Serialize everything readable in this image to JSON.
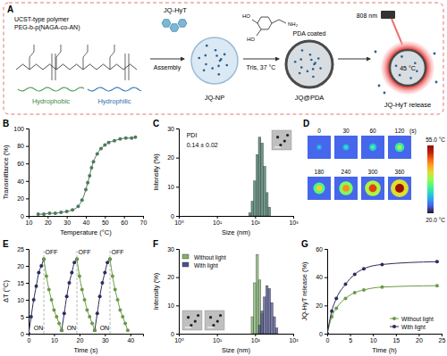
{
  "schematic": {
    "panel": "A",
    "polymer_title": "UCST-type polymer",
    "polymer_name": "PEG-b-p(NAGA-co-AN)",
    "hydrophobic": "Hydrophobic",
    "hydrophilic": "Hydrophilic",
    "drug": "JQ-HyT",
    "step1": "Assembly",
    "nanoparticle": "JQ-NP",
    "dopamine_labels": [
      "HO",
      "HO",
      "NH₂"
    ],
    "step2": "Tris, 37 °C",
    "coating": "PDA coated",
    "coated_particle": "JQ@PDA",
    "laser": "808 nm",
    "temperature": "45 °C",
    "release": "JQ-HyT release"
  },
  "thermal": {
    "panel": "D",
    "times": [
      0,
      30,
      60,
      120,
      180,
      240,
      300,
      360
    ],
    "time_unit": "(s)",
    "colorbar_max": "55.0 °C",
    "colorbar_min": "20.0 °C"
  },
  "chart_data": [
    {
      "panel": "B",
      "type": "line",
      "x_label": "Temperature (°C)",
      "y_label": "Transmittance (%)",
      "xlim": [
        10,
        70
      ],
      "xticks": [
        10,
        20,
        30,
        40,
        50,
        60,
        70
      ],
      "ylim": [
        0,
        100
      ],
      "yticks": [
        0,
        20,
        40,
        60,
        80,
        100
      ],
      "series": [
        {
          "color": "#4f7a5c",
          "marker": "circle",
          "line_style": "solid",
          "x": [
            15,
            18,
            21,
            24,
            27,
            30,
            33,
            36,
            38,
            40,
            41,
            42,
            43,
            44,
            46,
            48,
            50,
            52,
            55,
            58,
            61,
            64,
            66
          ],
          "y": [
            2,
            2,
            3,
            3,
            4,
            5,
            7,
            11,
            18,
            30,
            38,
            46,
            55,
            62,
            71,
            77,
            81,
            84,
            86,
            88,
            89,
            89,
            90
          ]
        }
      ]
    },
    {
      "panel": "C",
      "type": "histogram",
      "log": "x",
      "x_label": "Size (nm)",
      "y_label": "Intensity (%)",
      "xlim": [
        1,
        1000
      ],
      "xticks": [
        {
          "value": 1,
          "label": "10⁰"
        },
        {
          "value": 10,
          "label": "10¹"
        },
        {
          "value": 100,
          "label": "10²"
        },
        {
          "value": 1000,
          "label": "10³"
        }
      ],
      "ylim": [
        0,
        30
      ],
      "yticks": [
        0,
        10,
        20,
        30
      ],
      "annotations": [
        {
          "text": "PDI",
          "x": 1.6,
          "y": 27
        },
        {
          "text": "0.14 ± 0.02",
          "x": 1.6,
          "y": 23.5
        }
      ],
      "series": [
        {
          "color": "#5e8c7c",
          "bins": [
            68,
            79,
            91,
            106,
            122,
            142,
            164,
            190,
            220,
            255
          ],
          "counts": [
            1,
            5,
            12,
            21,
            27,
            25,
            17,
            8,
            3
          ]
        }
      ]
    },
    {
      "panel": "E",
      "type": "line",
      "x_label": "Time (s)",
      "y_label": "ΔT (°C)",
      "xlim": [
        0,
        45
      ],
      "xticks": [
        0,
        10,
        20,
        30,
        40
      ],
      "ylim": [
        0,
        25
      ],
      "yticks": [
        0,
        5,
        10,
        15,
        20,
        25
      ],
      "vlines": [
        6,
        19,
        32
      ],
      "annotations": [
        {
          "text": "ON",
          "x": 2,
          "y": 1
        },
        {
          "text": "OFF",
          "x": 6.5,
          "y": 23.5
        },
        {
          "text": "ON",
          "x": 15,
          "y": 1
        },
        {
          "text": "OFF",
          "x": 19.5,
          "y": 23.5
        },
        {
          "text": "ON",
          "x": 28,
          "y": 1
        },
        {
          "text": "OFF",
          "x": 32.5,
          "y": 23.5
        }
      ],
      "series": [
        {
          "color": "#2b2d5a",
          "marker": "circle",
          "line_style": "solid",
          "x": [
            0,
            1,
            2,
            3,
            4,
            5,
            6,
            null,
            13,
            14,
            15,
            16,
            17,
            18,
            19,
            null,
            26,
            27,
            28,
            29,
            30,
            31,
            32
          ],
          "y": [
            0,
            5,
            10,
            14,
            18,
            20,
            22,
            null,
            1,
            6,
            11,
            15,
            18,
            21,
            22,
            null,
            1,
            6,
            11,
            15,
            18,
            21,
            22
          ]
        },
        {
          "color": "#6b9a45",
          "marker": "circle",
          "line_style": "solid",
          "x": [
            6,
            7,
            8,
            9,
            10,
            11,
            12,
            13,
            null,
            19,
            20,
            21,
            22,
            23,
            24,
            25,
            26,
            null,
            32,
            33,
            34,
            35,
            36,
            37,
            38,
            39
          ],
          "y": [
            22,
            17,
            13,
            10,
            7,
            5,
            3,
            1,
            null,
            22,
            17,
            13,
            10,
            7,
            5,
            3,
            1,
            null,
            22,
            17,
            13,
            10,
            7,
            5,
            3,
            1
          ]
        }
      ]
    },
    {
      "panel": "F",
      "type": "histogram",
      "log": "x",
      "x_label": "Size (nm)",
      "y_label": "Intensity (%)",
      "xlim": [
        1,
        1000
      ],
      "xticks": [
        {
          "value": 1,
          "label": "10⁰"
        },
        {
          "value": 10,
          "label": "10¹"
        },
        {
          "value": 100,
          "label": "10²"
        },
        {
          "value": 1000,
          "label": "10³"
        }
      ],
      "ylim": [
        0,
        30
      ],
      "yticks": [
        0,
        10,
        20,
        30
      ],
      "legend": "top-left",
      "series": [
        {
          "name": "Without light",
          "color": "#7fb26a",
          "bins": [
            79,
            91,
            106,
            122,
            142,
            164
          ],
          "counts": [
            6,
            18,
            28,
            19,
            7
          ]
        },
        {
          "name": "With light",
          "color": "#4a4f8c",
          "bins": [
            122,
            142,
            164,
            190,
            220,
            255,
            295,
            342,
            396
          ],
          "counts": [
            3,
            8,
            13,
            17,
            16,
            11,
            6,
            2
          ]
        }
      ]
    },
    {
      "panel": "G",
      "type": "line",
      "x_label": "Time (h)",
      "y_label": "JQ-HyT release (%)",
      "xlim": [
        0,
        25
      ],
      "xticks": [
        0,
        5,
        10,
        15,
        20,
        25
      ],
      "ylim": [
        0,
        60
      ],
      "yticks": [
        0,
        20,
        40,
        60
      ],
      "legend": "bottom-right",
      "series": [
        {
          "name": "Without light",
          "color": "#6b9a45",
          "marker": "circle",
          "line_style": "solid",
          "x": [
            0,
            1,
            2,
            4,
            6,
            8,
            12,
            24
          ],
          "y": [
            0,
            12,
            18,
            25,
            29,
            31,
            33,
            34
          ]
        },
        {
          "name": "With light",
          "color": "#2b2d5a",
          "marker": "circle",
          "line_style": "solid",
          "x": [
            0,
            1,
            2,
            4,
            6,
            8,
            12,
            24
          ],
          "y": [
            0,
            16,
            25,
            35,
            42,
            46,
            49,
            51
          ]
        }
      ]
    }
  ]
}
